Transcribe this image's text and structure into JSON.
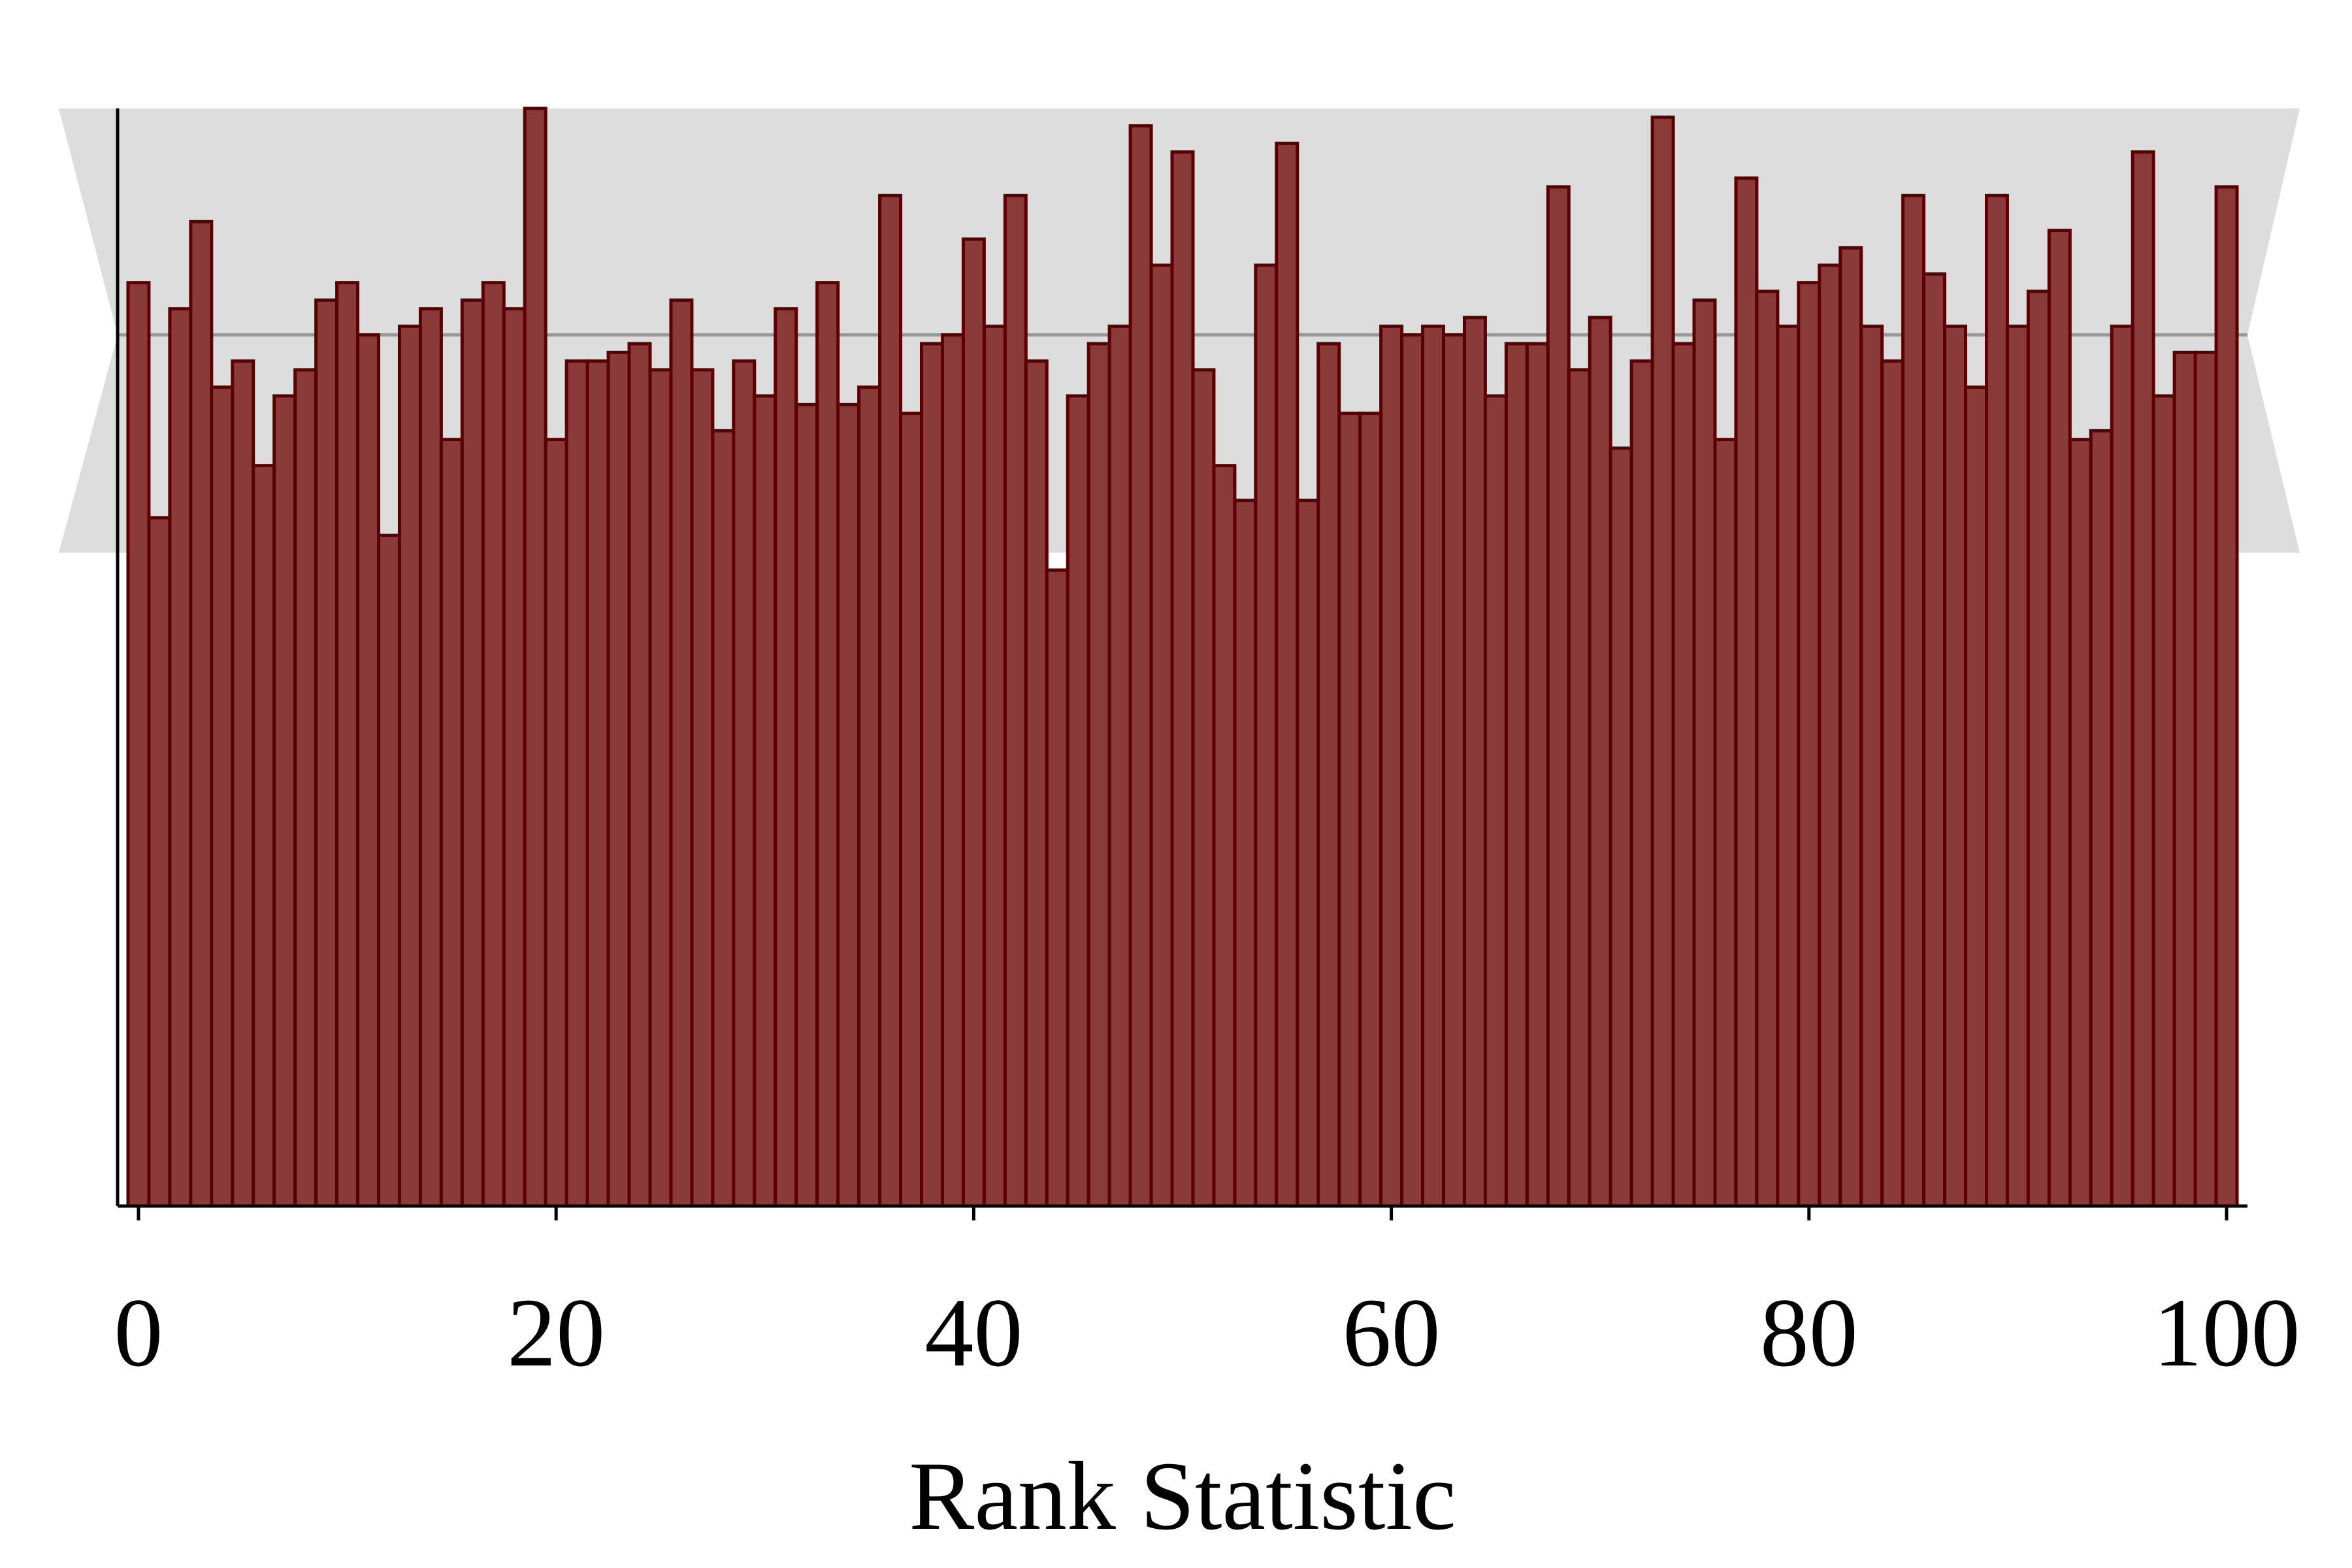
{
  "chart_data": {
    "type": "bar",
    "xlabel": "Rank Statistic",
    "ylabel": "",
    "x": [
      0,
      1,
      2,
      3,
      4,
      5,
      6,
      7,
      8,
      9,
      10,
      11,
      12,
      13,
      14,
      15,
      16,
      17,
      18,
      19,
      20,
      21,
      22,
      23,
      24,
      25,
      26,
      27,
      28,
      29,
      30,
      31,
      32,
      33,
      34,
      35,
      36,
      37,
      38,
      39,
      40,
      41,
      42,
      43,
      44,
      45,
      46,
      47,
      48,
      49,
      50,
      51,
      52,
      53,
      54,
      55,
      56,
      57,
      58,
      59,
      60,
      61,
      62,
      63,
      64,
      65,
      66,
      67,
      68,
      69,
      70,
      71,
      72,
      73,
      74,
      75,
      76,
      77,
      78,
      79,
      80,
      81,
      82,
      83,
      84,
      85,
      86,
      87,
      88,
      89,
      90,
      91,
      92,
      93,
      94,
      95,
      96,
      97,
      98,
      99,
      100
    ],
    "values": [
      106,
      79,
      103,
      113,
      94,
      97,
      85,
      93,
      96,
      104,
      106,
      100,
      77,
      101,
      103,
      88,
      104,
      106,
      103,
      126,
      88,
      97,
      97,
      98,
      99,
      96,
      104,
      96,
      89,
      97,
      93,
      103,
      92,
      106,
      92,
      94,
      116,
      91,
      99,
      100,
      111,
      101,
      116,
      97,
      73,
      93,
      99,
      101,
      124,
      108,
      121,
      96,
      85,
      81,
      108,
      122,
      81,
      99,
      91,
      91,
      101,
      100,
      101,
      100,
      102,
      93,
      99,
      99,
      117,
      96,
      102,
      87,
      97,
      125,
      99,
      104,
      88,
      118,
      105,
      101,
      106,
      108,
      110,
      101,
      97,
      116,
      107,
      101,
      94,
      116,
      101,
      105,
      112,
      88,
      89,
      101,
      121,
      93,
      98,
      98,
      117
    ],
    "xlim": [
      -1,
      101
    ],
    "ylim": [
      0,
      126
    ],
    "xticks": [
      0,
      20,
      40,
      60,
      80,
      100
    ],
    "xtick_labels": [
      "0",
      "20",
      "40",
      "60",
      "80",
      "100"
    ],
    "expected": 100,
    "band": {
      "low": 75,
      "high": 126
    },
    "colors": {
      "bar_fill": "#8b3a3a",
      "bar_edge": "#5a0000",
      "band": "#dddddd",
      "expected_line": "#999999",
      "axis": "#000000"
    },
    "grid": false,
    "legend": "none"
  }
}
